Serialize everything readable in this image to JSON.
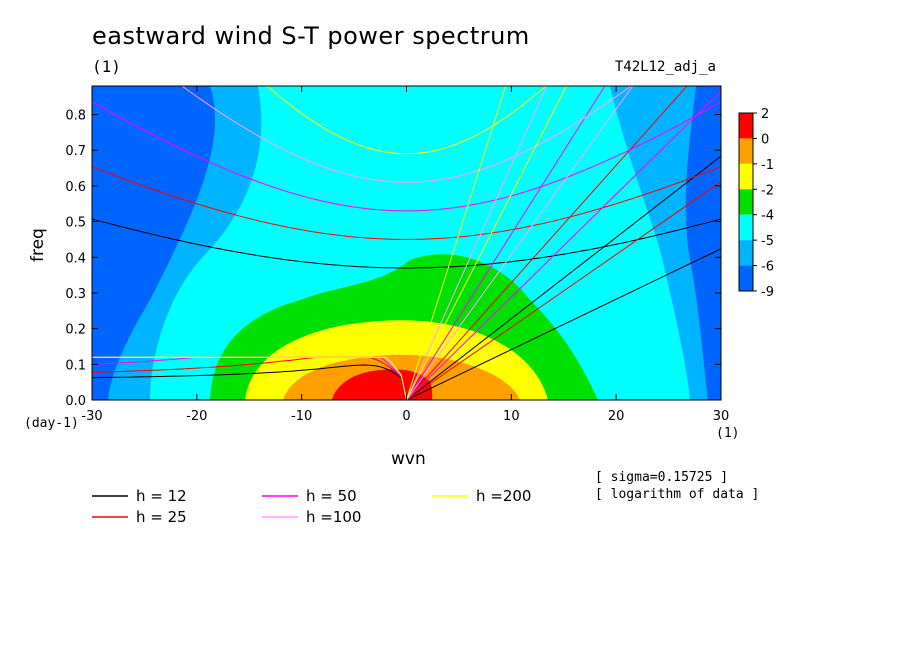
{
  "chart_data": {
    "type": "heatmap",
    "title": "eastward wind S-T power spectrum",
    "title_unit": "(1)",
    "run_label": "T42L12_adj_a",
    "xlabel": "wvn",
    "ylabel": "freq",
    "x_unit": "(1)",
    "y_unit": "(day-1)",
    "xlim": [
      -30,
      30
    ],
    "ylim": [
      0,
      0.88
    ],
    "x_ticks": [
      -30,
      -20,
      -10,
      0,
      10,
      20,
      30
    ],
    "x_tick_labels": [
      "-30",
      "-20",
      "-10",
      "0",
      "10",
      "20",
      "30"
    ],
    "y_ticks": [
      0.0,
      0.1,
      0.2,
      0.3,
      0.4,
      0.5,
      0.6,
      0.7,
      0.8
    ],
    "y_tick_labels": [
      "0.0",
      "0.1",
      "0.2",
      "0.3",
      "0.4",
      "0.5",
      "0.6",
      "0.7",
      "0.8"
    ],
    "colorbar": {
      "labels": [
        "2",
        "0",
        "-1",
        "-2",
        "-4",
        "-5",
        "-6",
        "-9"
      ],
      "colors": [
        "#ff0000",
        "#ffa000",
        "#ffff00",
        "#00e000",
        "#00ffff",
        "#00b4ff",
        "#0064ff"
      ]
    },
    "contour_levels": [
      {
        "level": -6,
        "color": "#0064ff"
      },
      {
        "level": -5,
        "color": "#00b4ff"
      },
      {
        "level": -4,
        "color": "#00ffff"
      },
      {
        "level": -2,
        "color": "#00e000"
      },
      {
        "level": -1,
        "color": "#ffff00"
      },
      {
        "level": 0,
        "color": "#ffa000"
      },
      {
        "level": 2,
        "color": "#ff0000"
      }
    ],
    "dispersion_curves": [
      {
        "label": "h = 12",
        "h": 12,
        "color": "#000000"
      },
      {
        "label": "h = 25",
        "h": 25,
        "color": "#ff0000"
      },
      {
        "label": "h = 50",
        "h": 50,
        "color": "#ff00ff"
      },
      {
        "label": "h =100",
        "h": 100,
        "color": "#ffa0ff"
      },
      {
        "label": "h =200",
        "h": 200,
        "color": "#ffff00"
      }
    ],
    "notes": [
      "[ sigma=0.15725 ]",
      "[ logarithm of data ]"
    ]
  }
}
